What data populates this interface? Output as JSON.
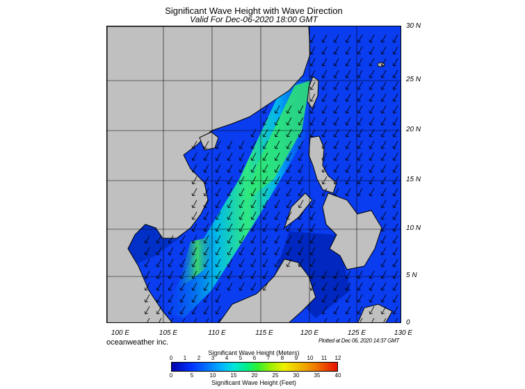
{
  "title": "Significant Wave Height with Wave Direction",
  "subtitle": "Valid For Dec-06-2020 18:00 GMT",
  "lat_labels": [
    "30 N",
    "25 N",
    "20 N",
    "15 N",
    "10 N",
    "5 N",
    "0"
  ],
  "lon_labels": [
    "100 E",
    "105 E",
    "110 E",
    "115 E",
    "120 E",
    "125 E",
    "130 E"
  ],
  "brand": "oceanweather inc.",
  "plotted": "Plotted at Dec 06, 2020 14:37 GMT",
  "colorbar": {
    "title_top": "Significant Wave Height (Meters)",
    "title_bottom": "Significant Wave Height (Feet)",
    "meters_ticks": [
      "0",
      "1",
      "2",
      "3",
      "4",
      "5",
      "6",
      "7",
      "8",
      "9",
      "10",
      "11",
      "12"
    ],
    "feet_ticks": [
      "0",
      "5",
      "10",
      "15",
      "20",
      "25",
      "30",
      "35",
      "40"
    ],
    "colors": [
      "#0000aa",
      "#0033ff",
      "#0077ff",
      "#00b4ff",
      "#00e8d8",
      "#00f08c",
      "#30f030",
      "#a0f000",
      "#f0f000",
      "#f0c000",
      "#f08000",
      "#e81000"
    ]
  },
  "map": {
    "extent_lon": [
      100,
      130
    ],
    "extent_lat": [
      0,
      30
    ],
    "land_color": "#c0c0c0",
    "wave_direction": "toward south-southwest (northeast monsoon)"
  }
}
